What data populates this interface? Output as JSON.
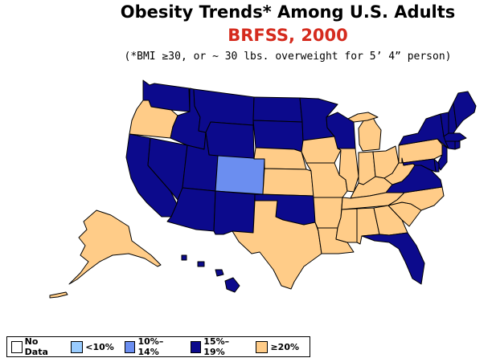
{
  "title": "Obesity Trends*  Among U.S. Adults",
  "subtitle": "BRFSS, 2000",
  "note": "(*BMI ≥30, or ~ 30 lbs. overweight for 5’ 4” person)",
  "colors": {
    "subtitle": "#d52b1e",
    "no_data": "#ffffff",
    "lt10": "#99ccff",
    "r10_14": "#6b8ef0",
    "r15_19": "#0c0a8c",
    "ge20": "#ffcc88",
    "border": "#000000"
  },
  "legend": [
    {
      "label": "No Data",
      "category": "no_data"
    },
    {
      "label": "<10%",
      "category": "lt10"
    },
    {
      "label": "10%–14%",
      "category": "r10_14"
    },
    {
      "label": "15%–19%",
      "category": "r15_19"
    },
    {
      "label": "≥20%",
      "category": "ge20"
    }
  ],
  "states": [
    {
      "code": "WA",
      "category": "r15_19"
    },
    {
      "code": "OR",
      "category": "ge20"
    },
    {
      "code": "CA",
      "category": "r15_19"
    },
    {
      "code": "NV",
      "category": "r15_19"
    },
    {
      "code": "ID",
      "category": "r15_19"
    },
    {
      "code": "MT",
      "category": "r15_19"
    },
    {
      "code": "WY",
      "category": "r15_19"
    },
    {
      "code": "UT",
      "category": "r15_19"
    },
    {
      "code": "AZ",
      "category": "r15_19"
    },
    {
      "code": "CO",
      "category": "r10_14"
    },
    {
      "code": "NM",
      "category": "r15_19"
    },
    {
      "code": "ND",
      "category": "r15_19"
    },
    {
      "code": "SD",
      "category": "r15_19"
    },
    {
      "code": "NE",
      "category": "ge20"
    },
    {
      "code": "KS",
      "category": "ge20"
    },
    {
      "code": "OK",
      "category": "r15_19"
    },
    {
      "code": "TX",
      "category": "ge20"
    },
    {
      "code": "MN",
      "category": "r15_19"
    },
    {
      "code": "IA",
      "category": "ge20"
    },
    {
      "code": "MO",
      "category": "ge20"
    },
    {
      "code": "AR",
      "category": "ge20"
    },
    {
      "code": "LA",
      "category": "ge20"
    },
    {
      "code": "WI",
      "category": "r15_19"
    },
    {
      "code": "IL",
      "category": "ge20"
    },
    {
      "code": "MI",
      "category": "ge20"
    },
    {
      "code": "IN",
      "category": "ge20"
    },
    {
      "code": "OH",
      "category": "ge20"
    },
    {
      "code": "KY",
      "category": "ge20"
    },
    {
      "code": "TN",
      "category": "ge20"
    },
    {
      "code": "MS",
      "category": "ge20"
    },
    {
      "code": "AL",
      "category": "ge20"
    },
    {
      "code": "GA",
      "category": "ge20"
    },
    {
      "code": "FL",
      "category": "r15_19"
    },
    {
      "code": "SC",
      "category": "ge20"
    },
    {
      "code": "NC",
      "category": "ge20"
    },
    {
      "code": "VA",
      "category": "r15_19"
    },
    {
      "code": "WV",
      "category": "ge20"
    },
    {
      "code": "PA",
      "category": "ge20"
    },
    {
      "code": "NY",
      "category": "r15_19"
    },
    {
      "code": "NJ",
      "category": "r15_19"
    },
    {
      "code": "DE",
      "category": "r15_19"
    },
    {
      "code": "MD",
      "category": "r15_19"
    },
    {
      "code": "ME",
      "category": "r15_19"
    },
    {
      "code": "NH",
      "category": "r15_19"
    },
    {
      "code": "VT",
      "category": "r15_19"
    },
    {
      "code": "MA",
      "category": "r15_19"
    },
    {
      "code": "CT",
      "category": "r15_19"
    },
    {
      "code": "RI",
      "category": "r15_19"
    },
    {
      "code": "AK",
      "category": "ge20"
    },
    {
      "code": "HI",
      "category": "r15_19"
    }
  ]
}
